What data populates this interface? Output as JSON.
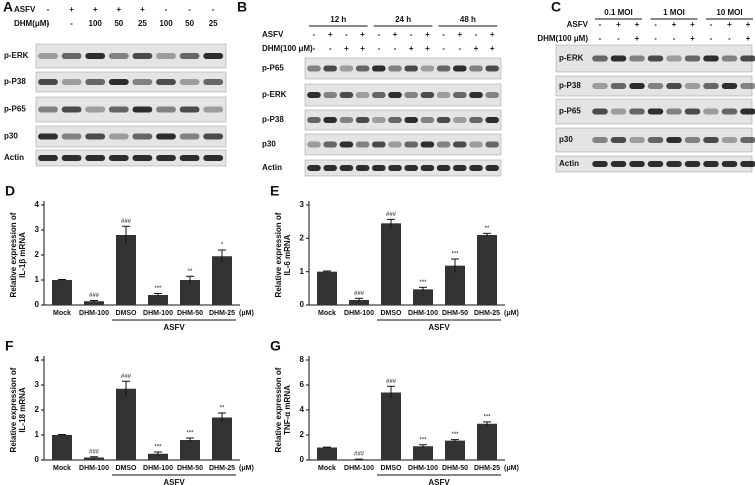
{
  "blots": [
    {
      "label": "A",
      "conditions": [
        {
          "name": "ASFV",
          "marks": [
            "-",
            "+",
            "+",
            "+",
            "+",
            "-",
            "-",
            "-"
          ]
        },
        {
          "name": "DHM(μM)",
          "marks": [
            "-",
            "-",
            "100",
            "50",
            "25",
            "100",
            "50",
            "25"
          ]
        }
      ],
      "bands": [
        "p-ERK",
        "p-P38",
        "p-P65",
        "p30",
        "Actin"
      ]
    },
    {
      "label": "B",
      "groups": [
        "12 h",
        "24 h",
        "48 h"
      ],
      "conditions": [
        {
          "name": "ASFV",
          "marks": [
            "-",
            "+",
            "-",
            "+",
            "-",
            "+",
            "-",
            "+",
            "-",
            "+",
            "-",
            "+"
          ]
        },
        {
          "name": "DHM(100 μM)",
          "marks": [
            "-",
            "-",
            "+",
            "+",
            "-",
            "-",
            "+",
            "+",
            "-",
            "-",
            "+",
            "+"
          ]
        }
      ],
      "bands": [
        "p-P65",
        "p-ERK",
        "p-P38",
        "p30",
        "Actin"
      ]
    },
    {
      "label": "C",
      "groups": [
        "0.1 MOI",
        "1 MOI",
        "10 MOI"
      ],
      "conditions": [
        {
          "name": "ASFV",
          "marks": [
            "-",
            "+",
            "+",
            "-",
            "+",
            "+",
            "-",
            "+",
            "+"
          ]
        },
        {
          "name": "DHM(100 μM)",
          "marks": [
            "-",
            "-",
            "+",
            "-",
            "-",
            "+",
            "-",
            "-",
            "+"
          ]
        }
      ],
      "bands": [
        "p-ERK",
        "p-P38",
        "p-P65",
        "p30",
        "Actin"
      ]
    }
  ],
  "chart_data": [
    {
      "type": "bar",
      "panel": "D",
      "ylabel": [
        "Relative expression of",
        "IL-1β mRNA"
      ],
      "categories": [
        "Mock",
        "DHM-100",
        "DMSO",
        "DHM-100",
        "DHM-50",
        "DHM-25"
      ],
      "unit": "(μM)",
      "group_label": "ASFV",
      "values": [
        1.0,
        0.15,
        2.8,
        0.4,
        1.0,
        1.95
      ],
      "errors": [
        0.02,
        0.03,
        0.35,
        0.06,
        0.15,
        0.25
      ],
      "significance": [
        null,
        "###",
        "###",
        "***",
        "**",
        "*"
      ],
      "color": "#333333",
      "ylim": [
        0,
        4
      ],
      "yticks": [
        0,
        1,
        2,
        3,
        4
      ]
    },
    {
      "type": "bar",
      "panel": "E",
      "ylabel": [
        "Relative expression of",
        "IL-6 mRNA"
      ],
      "categories": [
        "Mock",
        "DHM-100",
        "DMSO",
        "DHM-100",
        "DHM-50",
        "DHM-25"
      ],
      "unit": "(μM)",
      "group_label": "ASFV",
      "values": [
        1.0,
        0.15,
        2.45,
        0.47,
        1.18,
        2.1
      ],
      "errors": [
        0.02,
        0.05,
        0.12,
        0.06,
        0.2,
        0.05
      ],
      "significance": [
        null,
        "###",
        "###",
        "***",
        "***",
        "**"
      ],
      "color": "#333333",
      "ylim": [
        0,
        3
      ],
      "yticks": [
        0,
        1,
        2,
        3
      ]
    },
    {
      "type": "bar",
      "panel": "F",
      "ylabel": [
        "Relative expression of",
        "IL-18 mRNA"
      ],
      "categories": [
        "Mock",
        "DHM-100",
        "DMSO",
        "DHM-100",
        "DHM-50",
        "DHM-25"
      ],
      "unit": "(μM)",
      "group_label": "ASFV",
      "values": [
        1.0,
        0.1,
        2.85,
        0.25,
        0.8,
        1.7
      ],
      "errors": [
        0.02,
        0.03,
        0.3,
        0.07,
        0.08,
        0.18
      ],
      "significance": [
        null,
        "###",
        "###",
        "***",
        "***",
        "**"
      ],
      "color": "#333333",
      "ylim": [
        0,
        4
      ],
      "yticks": [
        0,
        1,
        2,
        3,
        4
      ]
    },
    {
      "type": "bar",
      "panel": "G",
      "ylabel": [
        "Relative expression of",
        "TNF-α mRNA"
      ],
      "categories": [
        "Mock",
        "DHM-100",
        "DMSO",
        "DHM-100",
        "DHM-50",
        "DHM-25"
      ],
      "unit": "(μM)",
      "group_label": "ASFV",
      "values": [
        1.0,
        0.05,
        5.4,
        1.1,
        1.55,
        2.9
      ],
      "errors": [
        0.03,
        0.02,
        0.5,
        0.12,
        0.08,
        0.15
      ],
      "significance": [
        null,
        "###",
        "###",
        "***",
        "***",
        "***"
      ],
      "color": "#333333",
      "ylim": [
        0,
        8
      ],
      "yticks": [
        0,
        2,
        4,
        6,
        8
      ]
    }
  ]
}
